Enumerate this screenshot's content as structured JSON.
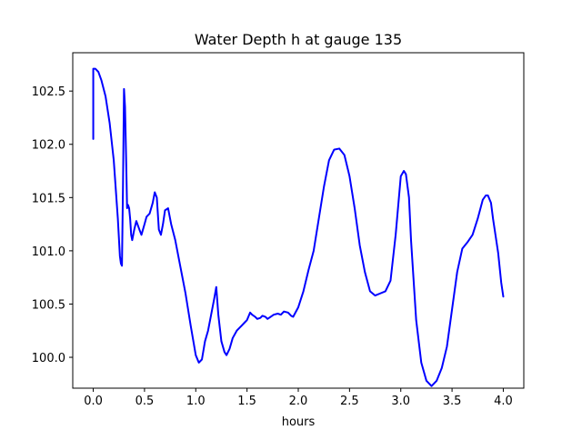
{
  "chart_data": {
    "type": "line",
    "title": "Water Depth h at gauge 135",
    "xlabel": "hours",
    "ylabel": "",
    "xlim": [
      -0.2,
      4.2
    ],
    "ylim": [
      99.71,
      102.86
    ],
    "xticks": [
      0.0,
      0.5,
      1.0,
      1.5,
      2.0,
      2.5,
      3.0,
      3.5,
      4.0
    ],
    "xtick_labels": [
      "0.0",
      "0.5",
      "1.0",
      "1.5",
      "2.0",
      "2.5",
      "3.0",
      "3.5",
      "4.0"
    ],
    "yticks": [
      100.0,
      100.5,
      101.0,
      101.5,
      102.0,
      102.5
    ],
    "ytick_labels": [
      "100.0",
      "100.5",
      "101.0",
      "101.5",
      "102.0",
      "102.5"
    ],
    "grid": false,
    "series": [
      {
        "color": "#0000ff",
        "x": [
          0.0,
          0.0,
          0.02,
          0.05,
          0.08,
          0.12,
          0.16,
          0.2,
          0.24,
          0.26,
          0.27,
          0.28,
          0.29,
          0.3,
          0.31,
          0.32,
          0.33,
          0.34,
          0.35,
          0.36,
          0.37,
          0.38,
          0.4,
          0.42,
          0.45,
          0.47,
          0.5,
          0.52,
          0.55,
          0.58,
          0.6,
          0.62,
          0.64,
          0.66,
          0.68,
          0.7,
          0.73,
          0.76,
          0.8,
          0.85,
          0.9,
          0.95,
          1.0,
          1.03,
          1.06,
          1.09,
          1.12,
          1.15,
          1.18,
          1.2,
          1.22,
          1.25,
          1.28,
          1.3,
          1.33,
          1.36,
          1.4,
          1.45,
          1.48,
          1.5,
          1.53,
          1.55,
          1.58,
          1.6,
          1.63,
          1.65,
          1.68,
          1.7,
          1.73,
          1.76,
          1.8,
          1.83,
          1.86,
          1.9,
          1.93,
          1.95,
          2.0,
          2.05,
          2.1,
          2.15,
          2.2,
          2.25,
          2.3,
          2.35,
          2.4,
          2.45,
          2.5,
          2.55,
          2.6,
          2.65,
          2.7,
          2.75,
          2.8,
          2.85,
          2.9,
          2.95,
          3.0,
          3.03,
          3.05,
          3.08,
          3.1,
          3.15,
          3.2,
          3.25,
          3.3,
          3.35,
          3.4,
          3.45,
          3.5,
          3.55,
          3.6,
          3.65,
          3.7,
          3.75,
          3.8,
          3.83,
          3.85,
          3.88,
          3.9,
          3.95,
          3.98,
          4.0
        ],
        "y": [
          102.05,
          102.71,
          102.71,
          102.68,
          102.6,
          102.45,
          102.2,
          101.85,
          101.3,
          100.95,
          100.88,
          100.86,
          101.6,
          102.52,
          102.35,
          101.9,
          101.4,
          101.43,
          101.4,
          101.3,
          101.15,
          101.1,
          101.2,
          101.28,
          101.2,
          101.15,
          101.25,
          101.32,
          101.35,
          101.45,
          101.55,
          101.5,
          101.2,
          101.15,
          101.25,
          101.38,
          101.4,
          101.25,
          101.1,
          100.85,
          100.6,
          100.3,
          100.02,
          99.95,
          99.98,
          100.15,
          100.25,
          100.4,
          100.55,
          100.66,
          100.4,
          100.15,
          100.05,
          100.02,
          100.08,
          100.18,
          100.25,
          100.3,
          100.33,
          100.35,
          100.42,
          100.4,
          100.38,
          100.36,
          100.37,
          100.39,
          100.38,
          100.36,
          100.38,
          100.4,
          100.41,
          100.4,
          100.43,
          100.42,
          100.39,
          100.38,
          100.47,
          100.62,
          100.82,
          101.0,
          101.3,
          101.6,
          101.85,
          101.95,
          101.96,
          101.9,
          101.7,
          101.4,
          101.05,
          100.8,
          100.62,
          100.58,
          100.6,
          100.62,
          100.72,
          101.15,
          101.7,
          101.75,
          101.72,
          101.5,
          101.1,
          100.35,
          99.95,
          99.78,
          99.73,
          99.78,
          99.9,
          100.1,
          100.45,
          100.8,
          101.02,
          101.08,
          101.15,
          101.3,
          101.48,
          101.52,
          101.52,
          101.45,
          101.3,
          100.98,
          100.7,
          100.57
        ]
      }
    ]
  }
}
